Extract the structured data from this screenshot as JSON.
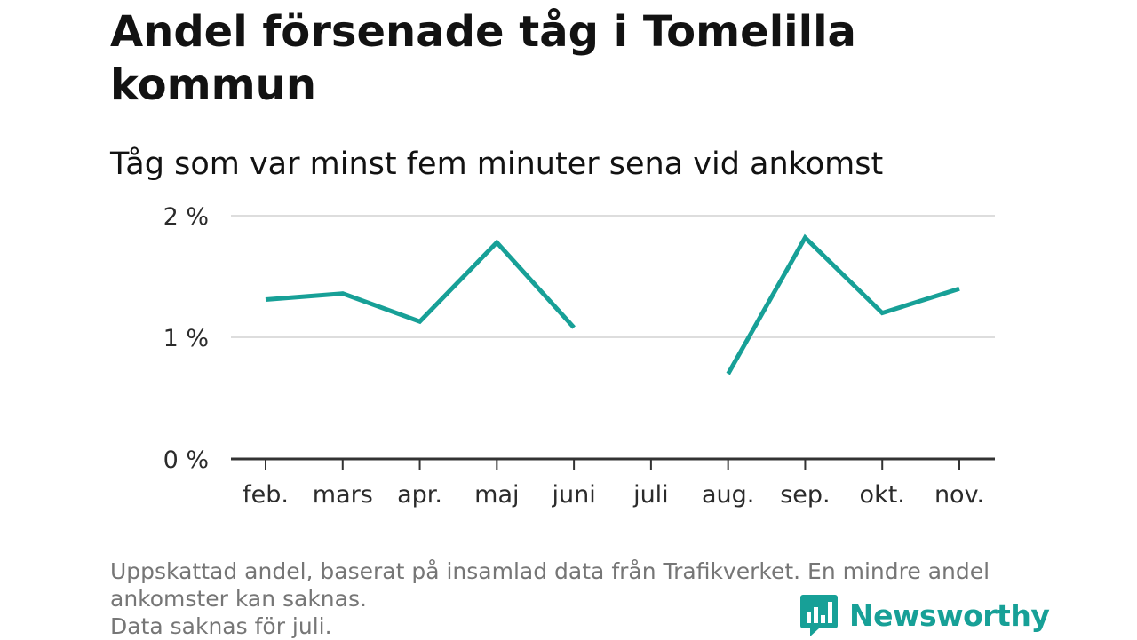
{
  "title": "Andel försenade tåg i Tomelilla kommun",
  "subtitle": "Tåg som var minst fem minuter sena vid ankomst",
  "footnote": {
    "line1": "Uppskattad andel, baserat på insamlad data från Trafikverket. En mindre andel ankomster kan saknas.",
    "line2": "Data saknas för juli."
  },
  "brand": {
    "name": "Newsworthy",
    "icon": "bar-chart-speech-bubble-icon"
  },
  "colors": {
    "line": "#17a097",
    "grid": "#dddddd",
    "axis": "#333333"
  },
  "chart_data": {
    "type": "line",
    "categories": [
      "feb.",
      "mars",
      "apr.",
      "maj",
      "juni",
      "juli",
      "aug.",
      "sep.",
      "okt.",
      "nov."
    ],
    "series": [
      {
        "values": [
          1.31,
          1.36,
          1.13,
          1.78,
          1.08,
          null,
          0.7,
          1.82,
          1.2,
          1.4
        ]
      }
    ],
    "y_ticks": [
      {
        "value": 0,
        "label": "0 %"
      },
      {
        "value": 1,
        "label": "1 %"
      },
      {
        "value": 2,
        "label": "2 %"
      }
    ],
    "ylim": [
      0,
      2
    ],
    "ylabel": "",
    "xlabel": "",
    "grid": true,
    "legend": "none"
  }
}
